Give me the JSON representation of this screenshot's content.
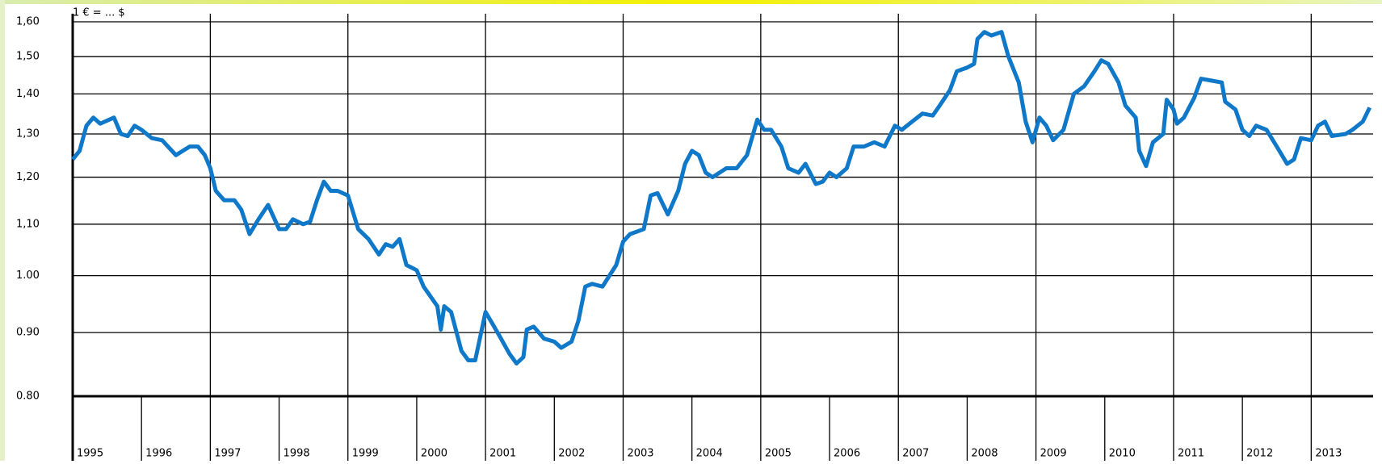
{
  "chart_data": {
    "type": "line",
    "title": "1 € = ... $",
    "yscale": "log",
    "grid": true,
    "xlim": [
      1995,
      2013.9
    ],
    "xticks": [
      1995,
      1996,
      1997,
      1998,
      1999,
      2000,
      2001,
      2002,
      2003,
      2004,
      2005,
      2006,
      2007,
      2008,
      2009,
      2010,
      2011,
      2012,
      2013
    ],
    "ylim": [
      0.8,
      1.6
    ],
    "yticks": [
      {
        "value": 0.8,
        "label": "0.80"
      },
      {
        "value": 0.9,
        "label": "0.90"
      },
      {
        "value": 1.0,
        "label": "1.00"
      },
      {
        "value": 1.1,
        "label": "1,10"
      },
      {
        "value": 1.2,
        "label": "1,20"
      },
      {
        "value": 1.3,
        "label": "1,30"
      },
      {
        "value": 1.4,
        "label": "1,40"
      },
      {
        "value": 1.5,
        "label": "1,50"
      },
      {
        "value": 1.6,
        "label": "1,60"
      }
    ],
    "x": [
      1995.0,
      1995.1,
      1995.2,
      1995.3,
      1995.4,
      1995.6,
      1995.7,
      1995.8,
      1995.9,
      1996.0,
      1996.15,
      1996.3,
      1996.5,
      1996.7,
      1996.82,
      1996.92,
      1997.0,
      1997.08,
      1997.2,
      1997.35,
      1997.45,
      1997.57,
      1997.7,
      1997.84,
      1998.0,
      1998.1,
      1998.2,
      1998.35,
      1998.45,
      1998.55,
      1998.65,
      1998.75,
      1998.85,
      1999.0,
      1999.15,
      1999.3,
      1999.45,
      1999.55,
      1999.65,
      1999.75,
      1999.85,
      2000.0,
      2000.1,
      2000.3,
      2000.35,
      2000.4,
      2000.5,
      2000.65,
      2000.75,
      2000.85,
      2001.0,
      2001.1,
      2001.2,
      2001.35,
      2001.45,
      2001.55,
      2001.6,
      2001.7,
      2001.85,
      2002.0,
      2002.1,
      2002.25,
      2002.35,
      2002.45,
      2002.55,
      2002.7,
      2002.9,
      2003.0,
      2003.1,
      2003.3,
      2003.4,
      2003.5,
      2003.65,
      2003.8,
      2003.9,
      2004.0,
      2004.1,
      2004.2,
      2004.3,
      2004.5,
      2004.65,
      2004.8,
      2004.95,
      2005.05,
      2005.15,
      2005.3,
      2005.4,
      2005.55,
      2005.65,
      2005.8,
      2005.9,
      2006.0,
      2006.1,
      2006.25,
      2006.35,
      2006.5,
      2006.65,
      2006.8,
      2006.95,
      2007.05,
      2007.2,
      2007.35,
      2007.5,
      2007.6,
      2007.75,
      2007.85,
      2008.0,
      2008.1,
      2008.15,
      2008.25,
      2008.35,
      2008.5,
      2008.6,
      2008.75,
      2008.85,
      2008.95,
      2009.05,
      2009.15,
      2009.25,
      2009.4,
      2009.55,
      2009.7,
      2009.85,
      2009.95,
      2010.05,
      2010.2,
      2010.3,
      2010.45,
      2010.5,
      2010.6,
      2010.7,
      2010.85,
      2010.9,
      2011.0,
      2011.05,
      2011.15,
      2011.3,
      2011.4,
      2011.55,
      2011.7,
      2011.75,
      2011.9,
      2012.0,
      2012.1,
      2012.2,
      2012.35,
      2012.5,
      2012.65,
      2012.75,
      2012.85,
      2013.0,
      2013.1,
      2013.2,
      2013.3,
      2013.5,
      2013.6,
      2013.75,
      2013.85
    ],
    "series": [
      {
        "color": "#0f78c8",
        "values": [
          1.24,
          1.26,
          1.32,
          1.34,
          1.325,
          1.34,
          1.3,
          1.295,
          1.32,
          1.31,
          1.29,
          1.285,
          1.25,
          1.27,
          1.27,
          1.25,
          1.22,
          1.17,
          1.15,
          1.15,
          1.13,
          1.08,
          1.11,
          1.14,
          1.09,
          1.09,
          1.11,
          1.1,
          1.105,
          1.15,
          1.19,
          1.17,
          1.17,
          1.16,
          1.09,
          1.07,
          1.04,
          1.06,
          1.055,
          1.07,
          1.02,
          1.01,
          0.98,
          0.945,
          0.905,
          0.945,
          0.935,
          0.87,
          0.855,
          0.855,
          0.935,
          0.915,
          0.895,
          0.865,
          0.85,
          0.86,
          0.905,
          0.91,
          0.89,
          0.885,
          0.875,
          0.885,
          0.92,
          0.98,
          0.985,
          0.98,
          1.02,
          1.065,
          1.08,
          1.09,
          1.16,
          1.165,
          1.12,
          1.17,
          1.23,
          1.26,
          1.25,
          1.21,
          1.2,
          1.22,
          1.22,
          1.25,
          1.335,
          1.31,
          1.31,
          1.27,
          1.22,
          1.21,
          1.23,
          1.185,
          1.19,
          1.21,
          1.2,
          1.22,
          1.27,
          1.27,
          1.28,
          1.27,
          1.32,
          1.31,
          1.33,
          1.35,
          1.345,
          1.37,
          1.41,
          1.46,
          1.47,
          1.48,
          1.55,
          1.57,
          1.56,
          1.57,
          1.5,
          1.43,
          1.33,
          1.28,
          1.34,
          1.32,
          1.285,
          1.31,
          1.4,
          1.42,
          1.46,
          1.49,
          1.48,
          1.43,
          1.37,
          1.34,
          1.26,
          1.225,
          1.28,
          1.3,
          1.385,
          1.36,
          1.325,
          1.34,
          1.39,
          1.44,
          1.435,
          1.43,
          1.38,
          1.36,
          1.31,
          1.295,
          1.32,
          1.31,
          1.27,
          1.23,
          1.24,
          1.29,
          1.285,
          1.32,
          1.33,
          1.295,
          1.3,
          1.31,
          1.33,
          1.365
        ]
      }
    ]
  }
}
